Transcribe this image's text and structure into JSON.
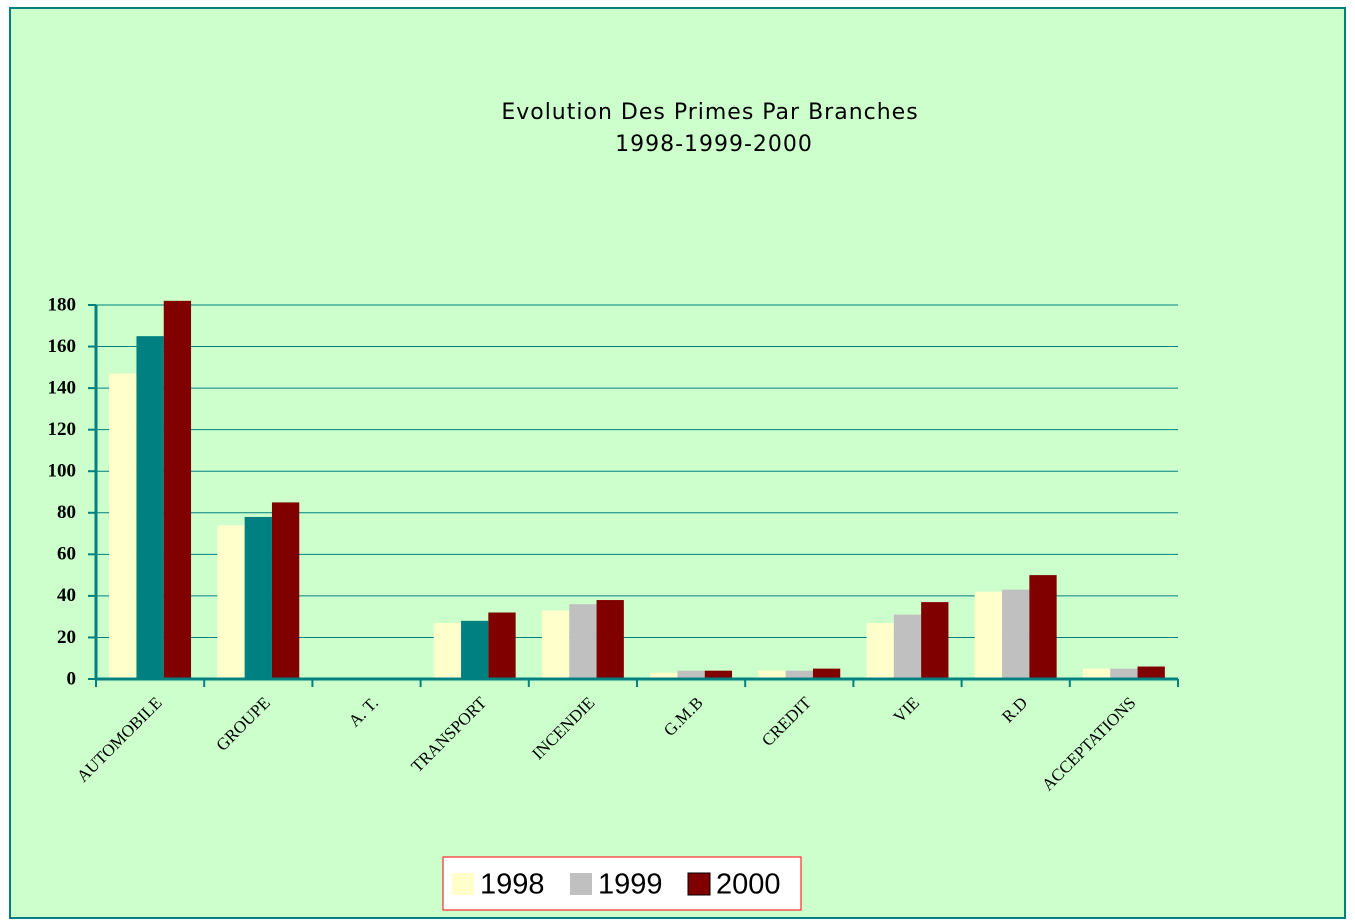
{
  "chart_data": {
    "type": "bar",
    "title": "Evolution Des Primes Par Branches",
    "subtitle": "1998-1999-2000",
    "categories": [
      "AUTOMOBILE",
      "GROUPE",
      "A. T.",
      "TRANSPORT",
      "INCENDIE",
      "G.M.B",
      "CREDIT",
      "VIE",
      "R.D",
      "ACCEPTATIONS"
    ],
    "series": [
      {
        "name": "1998",
        "color": "#ffffcc",
        "values": [
          147,
          74,
          0,
          27,
          33,
          3,
          4,
          27,
          42,
          5
        ]
      },
      {
        "name": "1999",
        "color": "#c0c0c0",
        "colors": [
          "#008080",
          "#008080",
          "#008080",
          "#008080",
          "#c0c0c0",
          "#c0c0c0",
          "#c0c0c0",
          "#c0c0c0",
          "#c0c0c0",
          "#c0c0c0"
        ],
        "values": [
          165,
          78,
          0,
          28,
          36,
          4,
          4,
          31,
          43,
          5
        ]
      },
      {
        "name": "2000",
        "color": "#800000",
        "values": [
          182,
          85,
          0,
          32,
          38,
          4,
          5,
          37,
          50,
          6
        ]
      }
    ],
    "ylim": [
      0,
      180
    ],
    "yticks": [
      0,
      20,
      40,
      60,
      80,
      100,
      120,
      140,
      160,
      180
    ],
    "grid": true,
    "legend": "bottom"
  }
}
